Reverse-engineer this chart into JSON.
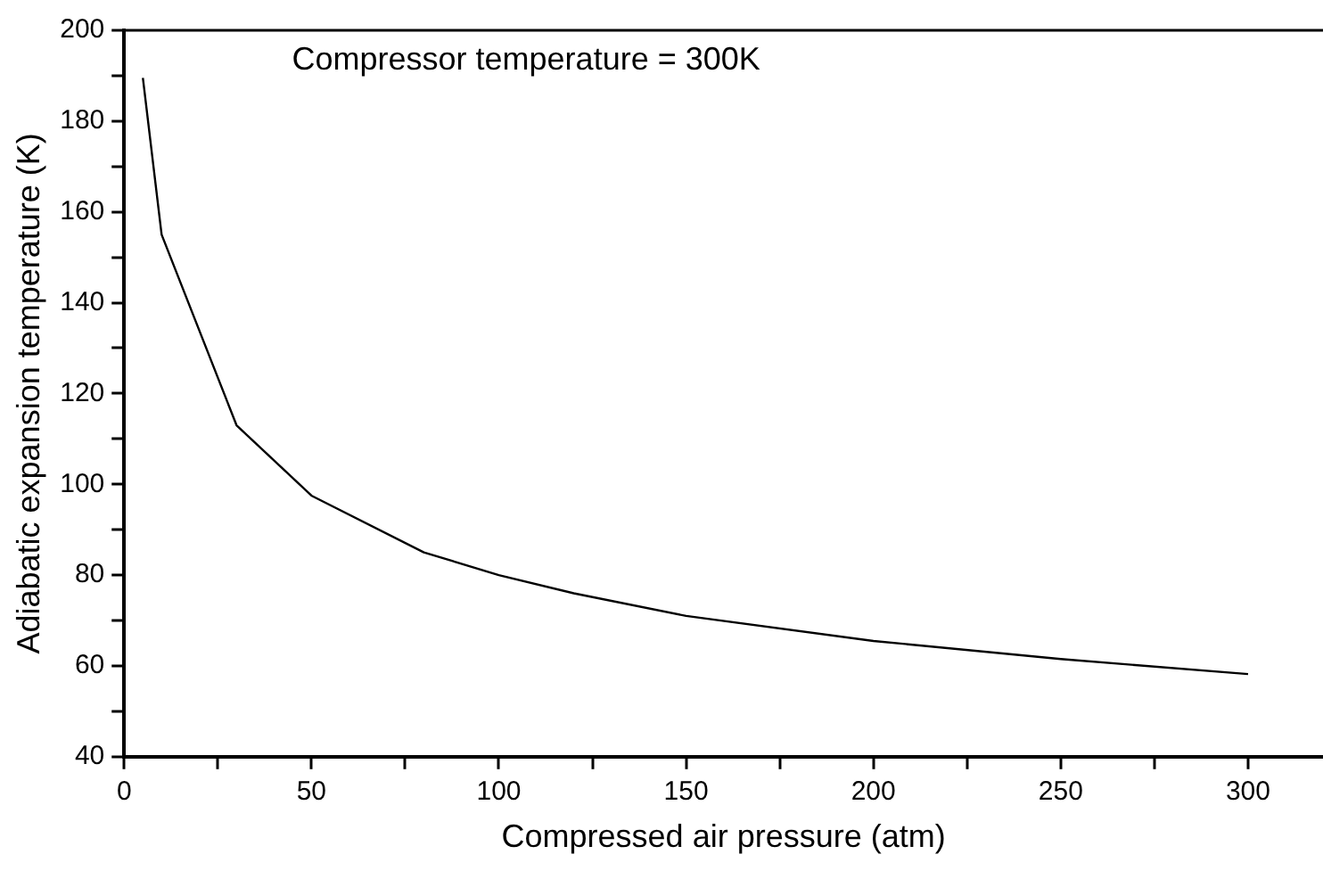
{
  "chart_data": {
    "type": "line",
    "xlabel": "Compressed air pressure (atm)",
    "ylabel": "Adiabatic expansion temperature (K)",
    "annotations": [
      "Compressor temperature = 300K"
    ],
    "x": [
      5,
      10,
      30,
      50,
      80,
      100,
      120,
      150,
      200,
      250,
      300
    ],
    "series": [
      {
        "color": "#000000",
        "values": [
          189.5,
          155,
          113,
          97.5,
          85,
          80,
          76,
          71,
          65.5,
          61.5,
          58.2
        ]
      }
    ],
    "xlim": [
      0,
      320
    ],
    "xticks": [
      0,
      {
        "value": 25,
        "label": null
      },
      50,
      {
        "value": 75,
        "label": null
      },
      100,
      {
        "value": 125,
        "label": null
      },
      150,
      {
        "value": 175,
        "label": null
      },
      200,
      {
        "value": 225,
        "label": null
      },
      250,
      {
        "value": 275,
        "label": null
      },
      300
    ],
    "ylim": [
      40,
      200
    ],
    "yticks": [
      40,
      {
        "value": 50,
        "label": null
      },
      60,
      {
        "value": 70,
        "label": null
      },
      80,
      {
        "value": 90,
        "label": null
      },
      100,
      {
        "value": 110,
        "label": null
      },
      120,
      {
        "value": 130,
        "label": null
      },
      140,
      {
        "value": 150,
        "label": null
      },
      160,
      {
        "value": 170,
        "label": null
      },
      180,
      {
        "value": 190,
        "label": null
      },
      200
    ],
    "grid": false,
    "legend": false,
    "marker": "none",
    "line_style": "solid"
  }
}
